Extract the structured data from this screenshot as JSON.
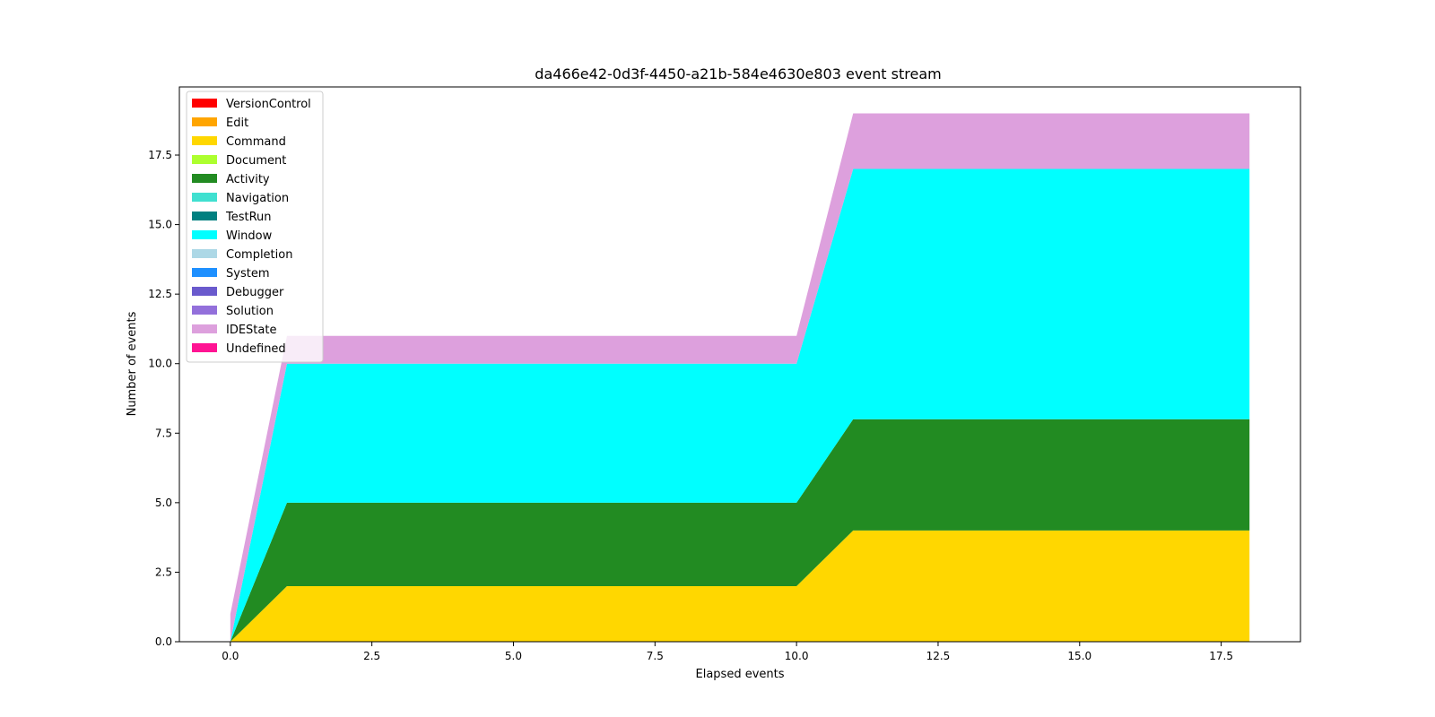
{
  "chart_data": {
    "type": "area",
    "title": "da466e42-0d3f-4450-a21b-584e4630e803 event stream",
    "xlabel": "Elapsed events",
    "ylabel": "Number of events",
    "xlim": [
      -0.9,
      18.9
    ],
    "ylim": [
      0,
      19.95
    ],
    "x_ticks": [
      "0.0",
      "2.5",
      "5.0",
      "7.5",
      "10.0",
      "12.5",
      "15.0",
      "17.5"
    ],
    "y_ticks": [
      "0.0",
      "2.5",
      "5.0",
      "7.5",
      "10.0",
      "12.5",
      "15.0",
      "17.5"
    ],
    "x": [
      0,
      1,
      10,
      11,
      18
    ],
    "stacked": true,
    "legend_position": "upper-left",
    "grid": false,
    "series": [
      {
        "name": "VersionControl",
        "color": "#ff0000",
        "values": [
          0,
          0,
          0,
          0,
          0
        ]
      },
      {
        "name": "Edit",
        "color": "#ffa500",
        "values": [
          0,
          0,
          0,
          0,
          0
        ]
      },
      {
        "name": "Command",
        "color": "#ffd700",
        "values": [
          0,
          2,
          2,
          4,
          4
        ]
      },
      {
        "name": "Document",
        "color": "#adff2f",
        "values": [
          0,
          0,
          0,
          0,
          0
        ]
      },
      {
        "name": "Activity",
        "color": "#228b22",
        "values": [
          0,
          3,
          3,
          4,
          4
        ]
      },
      {
        "name": "Navigation",
        "color": "#40e0d0",
        "values": [
          0,
          0,
          0,
          0,
          0
        ]
      },
      {
        "name": "TestRun",
        "color": "#008080",
        "values": [
          0,
          0,
          0,
          0,
          0
        ]
      },
      {
        "name": "Window",
        "color": "#00ffff",
        "values": [
          0,
          5,
          5,
          9,
          9
        ]
      },
      {
        "name": "Completion",
        "color": "#add8e6",
        "values": [
          0,
          0,
          0,
          0,
          0
        ]
      },
      {
        "name": "System",
        "color": "#1e90ff",
        "values": [
          0,
          0,
          0,
          0,
          0
        ]
      },
      {
        "name": "Debugger",
        "color": "#6a5acd",
        "values": [
          0,
          0,
          0,
          0,
          0
        ]
      },
      {
        "name": "Solution",
        "color": "#9370db",
        "values": [
          0,
          0,
          0,
          0,
          0
        ]
      },
      {
        "name": "IDEState",
        "color": "#dda0dd",
        "values": [
          1,
          1,
          1,
          2,
          2
        ]
      },
      {
        "name": " Undefined",
        "color": "#ff1493",
        "values": [
          0,
          0,
          0,
          0,
          0
        ]
      }
    ]
  }
}
